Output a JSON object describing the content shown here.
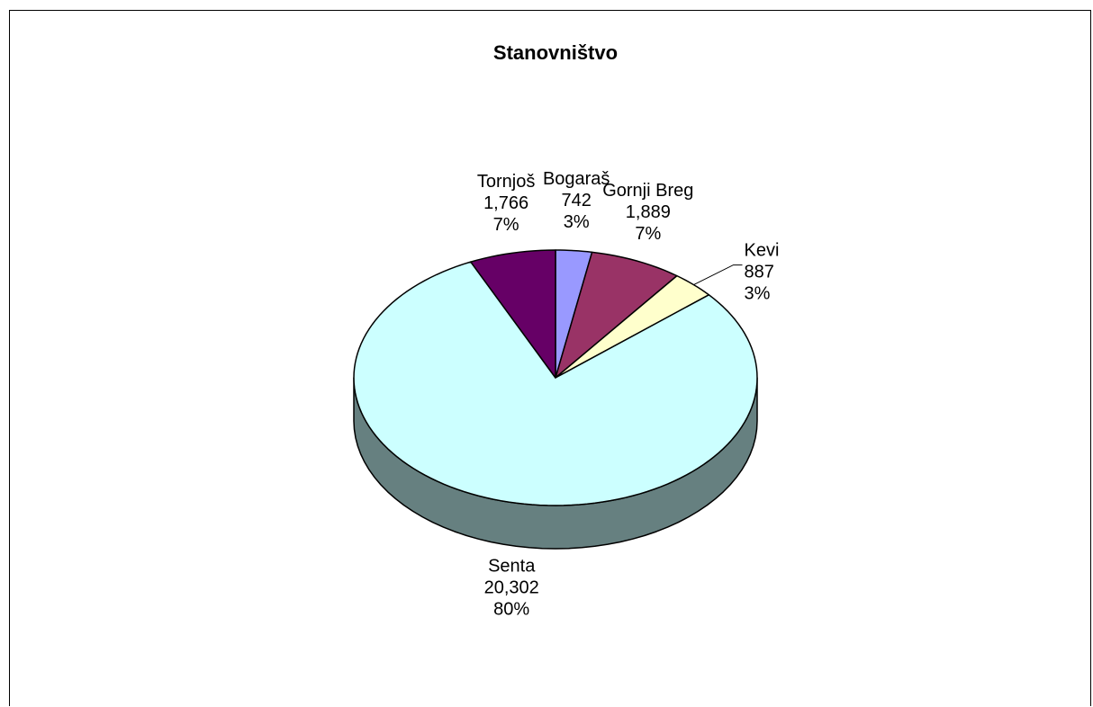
{
  "chart_data": {
    "type": "pie",
    "title": "Stanovništvo",
    "style": "3d",
    "slices": [
      {
        "label": "Bogaraš",
        "value": 742,
        "value_text": "742",
        "percent_text": "3%",
        "color": "#9999ff",
        "side_color": "#6f6fc0"
      },
      {
        "label": "Gornji Breg",
        "value": 1889,
        "value_text": "1,889",
        "percent_text": "7%",
        "color": "#993366",
        "side_color": "#6b2447"
      },
      {
        "label": "Kevi",
        "value": 887,
        "value_text": "887",
        "percent_text": "3%",
        "color": "#ffffcc",
        "side_color": "#c2c29b"
      },
      {
        "label": "Senta",
        "value": 20302,
        "value_text": "20,302",
        "percent_text": "80%",
        "color": "#ccffff",
        "side_color": "#668080"
      },
      {
        "label": "Tornjoš",
        "value": 1766,
        "value_text": "1,766",
        "percent_text": "7%",
        "color": "#660066",
        "side_color": "#3d003d"
      }
    ]
  }
}
